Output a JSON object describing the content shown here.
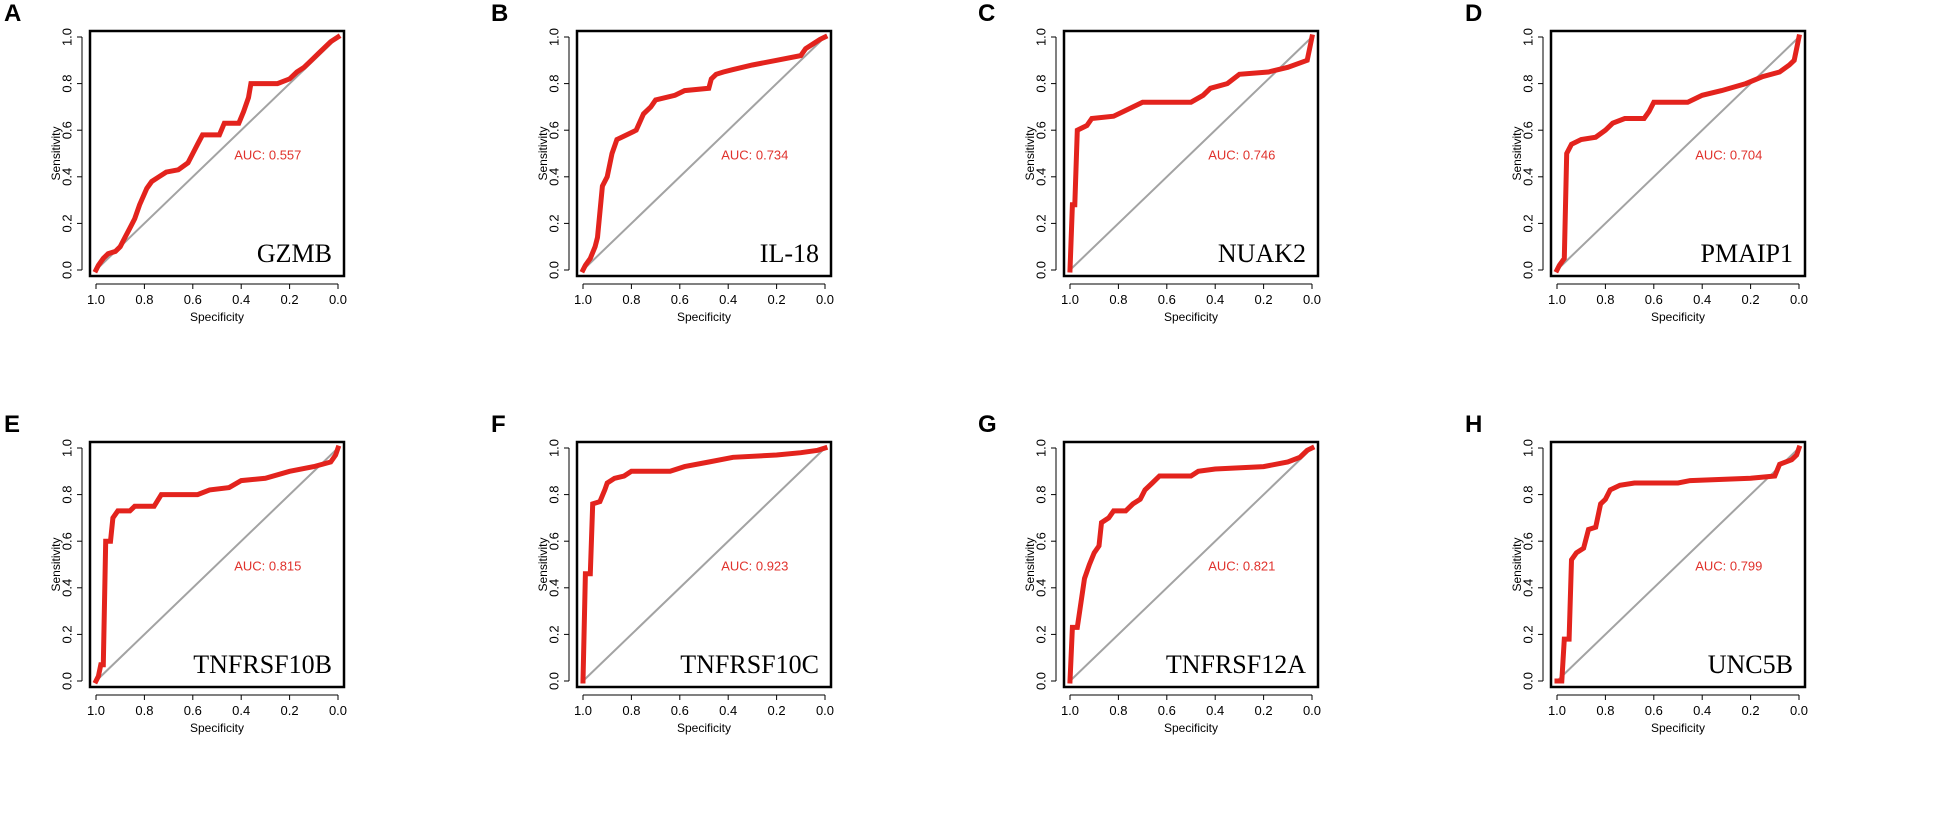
{
  "chart_data": [
    {
      "type": "line",
      "panel_letter": "A",
      "gene": "GZMB",
      "auc_label": "AUC: 0.557",
      "xlabel": "Specificity",
      "ylabel": "Sensitivity",
      "xlim": [
        1.0,
        0.0
      ],
      "ylim": [
        0.0,
        1.0
      ],
      "x_ticks": [
        "1.0",
        "0.8",
        "0.6",
        "0.4",
        "0.2",
        "0.0"
      ],
      "y_ticks": [
        "0.0",
        "0.2",
        "0.4",
        "0.6",
        "0.8",
        "1.0"
      ],
      "series": [
        {
          "name": "ROC",
          "points": [
            [
              1,
              0
            ],
            [
              0.99,
              0.02
            ],
            [
              0.97,
              0.05
            ],
            [
              0.95,
              0.07
            ],
            [
              0.92,
              0.08
            ],
            [
              0.9,
              0.1
            ],
            [
              0.88,
              0.14
            ],
            [
              0.86,
              0.18
            ],
            [
              0.84,
              0.22
            ],
            [
              0.82,
              0.28
            ],
            [
              0.79,
              0.35
            ],
            [
              0.77,
              0.38
            ],
            [
              0.74,
              0.4
            ],
            [
              0.71,
              0.42
            ],
            [
              0.66,
              0.43
            ],
            [
              0.62,
              0.46
            ],
            [
              0.6,
              0.5
            ],
            [
              0.58,
              0.54
            ],
            [
              0.56,
              0.58
            ],
            [
              0.49,
              0.58
            ],
            [
              0.47,
              0.63
            ],
            [
              0.41,
              0.63
            ],
            [
              0.39,
              0.68
            ],
            [
              0.37,
              0.74
            ],
            [
              0.36,
              0.8
            ],
            [
              0.25,
              0.8
            ],
            [
              0.2,
              0.82
            ],
            [
              0.17,
              0.85
            ],
            [
              0.14,
              0.87
            ],
            [
              0.11,
              0.9
            ],
            [
              0.08,
              0.93
            ],
            [
              0.05,
              0.96
            ],
            [
              0.03,
              0.98
            ],
            [
              0,
              1
            ]
          ]
        },
        {
          "name": "Reference",
          "points": [
            [
              1,
              0
            ],
            [
              0,
              1
            ]
          ]
        }
      ]
    },
    {
      "type": "line",
      "panel_letter": "B",
      "gene": "IL-18",
      "auc_label": "AUC: 0.734",
      "xlabel": "Specificity",
      "ylabel": "Sensitivity",
      "xlim": [
        1.0,
        0.0
      ],
      "ylim": [
        0.0,
        1.0
      ],
      "x_ticks": [
        "1.0",
        "0.8",
        "0.6",
        "0.4",
        "0.2",
        "0.0"
      ],
      "y_ticks": [
        "0.0",
        "0.2",
        "0.4",
        "0.6",
        "0.8",
        "1.0"
      ],
      "series": [
        {
          "name": "ROC",
          "points": [
            [
              1,
              0
            ],
            [
              0.99,
              0.02
            ],
            [
              0.97,
              0.05
            ],
            [
              0.95,
              0.1
            ],
            [
              0.94,
              0.14
            ],
            [
              0.92,
              0.36
            ],
            [
              0.9,
              0.4
            ],
            [
              0.88,
              0.5
            ],
            [
              0.86,
              0.56
            ],
            [
              0.84,
              0.57
            ],
            [
              0.78,
              0.6
            ],
            [
              0.75,
              0.67
            ],
            [
              0.72,
              0.7
            ],
            [
              0.7,
              0.73
            ],
            [
              0.62,
              0.75
            ],
            [
              0.58,
              0.77
            ],
            [
              0.48,
              0.78
            ],
            [
              0.47,
              0.82
            ],
            [
              0.45,
              0.84
            ],
            [
              0.42,
              0.85
            ],
            [
              0.38,
              0.86
            ],
            [
              0.3,
              0.88
            ],
            [
              0.2,
              0.9
            ],
            [
              0.1,
              0.92
            ],
            [
              0.08,
              0.95
            ],
            [
              0.05,
              0.97
            ],
            [
              0.02,
              0.99
            ],
            [
              0,
              1
            ]
          ]
        },
        {
          "name": "Reference",
          "points": [
            [
              1,
              0
            ],
            [
              0,
              1
            ]
          ]
        }
      ]
    },
    {
      "type": "line",
      "panel_letter": "C",
      "gene": "NUAK2",
      "auc_label": "AUC: 0.746",
      "xlabel": "Specificity",
      "ylabel": "Sensitivity",
      "xlim": [
        1.0,
        0.0
      ],
      "ylim": [
        0.0,
        1.0
      ],
      "x_ticks": [
        "1.0",
        "0.8",
        "0.6",
        "0.4",
        "0.2",
        "0.0"
      ],
      "y_ticks": [
        "0.0",
        "0.2",
        "0.4",
        "0.6",
        "0.8",
        "1.0"
      ],
      "series": [
        {
          "name": "ROC",
          "points": [
            [
              1,
              0
            ],
            [
              0.99,
              0.28
            ],
            [
              0.98,
              0.28
            ],
            [
              0.97,
              0.6
            ],
            [
              0.93,
              0.62
            ],
            [
              0.91,
              0.65
            ],
            [
              0.82,
              0.66
            ],
            [
              0.78,
              0.68
            ],
            [
              0.7,
              0.72
            ],
            [
              0.5,
              0.72
            ],
            [
              0.45,
              0.75
            ],
            [
              0.42,
              0.78
            ],
            [
              0.35,
              0.8
            ],
            [
              0.3,
              0.84
            ],
            [
              0.18,
              0.85
            ],
            [
              0.1,
              0.87
            ],
            [
              0.02,
              0.9
            ],
            [
              0.01,
              0.95
            ],
            [
              0,
              1
            ]
          ]
        },
        {
          "name": "Reference",
          "points": [
            [
              1,
              0
            ],
            [
              0,
              1
            ]
          ]
        }
      ]
    },
    {
      "type": "line",
      "panel_letter": "D",
      "gene": "PMAIP1",
      "auc_label": "AUC: 0.704",
      "xlabel": "Specificity",
      "ylabel": "Sensitivity",
      "xlim": [
        1.0,
        0.0
      ],
      "ylim": [
        0.0,
        1.0
      ],
      "x_ticks": [
        "1.0",
        "0.8",
        "0.6",
        "0.4",
        "0.2",
        "0.0"
      ],
      "y_ticks": [
        "0.0",
        "0.2",
        "0.4",
        "0.6",
        "0.8",
        "1.0"
      ],
      "series": [
        {
          "name": "ROC",
          "points": [
            [
              1,
              0
            ],
            [
              0.99,
              0.02
            ],
            [
              0.97,
              0.05
            ],
            [
              0.96,
              0.5
            ],
            [
              0.94,
              0.54
            ],
            [
              0.9,
              0.56
            ],
            [
              0.84,
              0.57
            ],
            [
              0.8,
              0.6
            ],
            [
              0.77,
              0.63
            ],
            [
              0.72,
              0.65
            ],
            [
              0.64,
              0.65
            ],
            [
              0.62,
              0.68
            ],
            [
              0.6,
              0.72
            ],
            [
              0.46,
              0.72
            ],
            [
              0.4,
              0.75
            ],
            [
              0.32,
              0.77
            ],
            [
              0.22,
              0.8
            ],
            [
              0.15,
              0.83
            ],
            [
              0.08,
              0.85
            ],
            [
              0.04,
              0.88
            ],
            [
              0.02,
              0.9
            ],
            [
              0.01,
              0.95
            ],
            [
              0,
              1
            ]
          ]
        },
        {
          "name": "Reference",
          "points": [
            [
              1,
              0
            ],
            [
              0,
              1
            ]
          ]
        }
      ]
    },
    {
      "type": "line",
      "panel_letter": "E",
      "gene": "TNFRSF10B",
      "auc_label": "AUC: 0.815",
      "xlabel": "Specificity",
      "ylabel": "Sensitivity",
      "xlim": [
        1.0,
        0.0
      ],
      "ylim": [
        0.0,
        1.0
      ],
      "x_ticks": [
        "1.0",
        "0.8",
        "0.6",
        "0.4",
        "0.2",
        "0.0"
      ],
      "y_ticks": [
        "0.0",
        "0.2",
        "0.4",
        "0.6",
        "0.8",
        "1.0"
      ],
      "series": [
        {
          "name": "ROC",
          "points": [
            [
              1,
              0
            ],
            [
              0.99,
              0.02
            ],
            [
              0.98,
              0.07
            ],
            [
              0.97,
              0.07
            ],
            [
              0.96,
              0.6
            ],
            [
              0.94,
              0.6
            ],
            [
              0.93,
              0.7
            ],
            [
              0.91,
              0.73
            ],
            [
              0.86,
              0.73
            ],
            [
              0.84,
              0.75
            ],
            [
              0.76,
              0.75
            ],
            [
              0.73,
              0.8
            ],
            [
              0.58,
              0.8
            ],
            [
              0.53,
              0.82
            ],
            [
              0.45,
              0.83
            ],
            [
              0.4,
              0.86
            ],
            [
              0.3,
              0.87
            ],
            [
              0.2,
              0.9
            ],
            [
              0.1,
              0.92
            ],
            [
              0.03,
              0.94
            ],
            [
              0.01,
              0.97
            ],
            [
              0,
              1
            ]
          ]
        },
        {
          "name": "Reference",
          "points": [
            [
              1,
              0
            ],
            [
              0,
              1
            ]
          ]
        }
      ]
    },
    {
      "type": "line",
      "panel_letter": "F",
      "gene": "TNFRSF10C",
      "auc_label": "AUC: 0.923",
      "xlabel": "Specificity",
      "ylabel": "Sensitivity",
      "xlim": [
        1.0,
        0.0
      ],
      "ylim": [
        0.0,
        1.0
      ],
      "x_ticks": [
        "1.0",
        "0.8",
        "0.6",
        "0.4",
        "0.2",
        "0.0"
      ],
      "y_ticks": [
        "0.0",
        "0.2",
        "0.4",
        "0.6",
        "0.8",
        "1.0"
      ],
      "series": [
        {
          "name": "ROC",
          "points": [
            [
              1,
              0
            ],
            [
              0.99,
              0.46
            ],
            [
              0.97,
              0.46
            ],
            [
              0.96,
              0.76
            ],
            [
              0.93,
              0.77
            ],
            [
              0.91,
              0.82
            ],
            [
              0.9,
              0.85
            ],
            [
              0.87,
              0.87
            ],
            [
              0.83,
              0.88
            ],
            [
              0.8,
              0.9
            ],
            [
              0.64,
              0.9
            ],
            [
              0.58,
              0.92
            ],
            [
              0.48,
              0.94
            ],
            [
              0.38,
              0.96
            ],
            [
              0.2,
              0.97
            ],
            [
              0.1,
              0.98
            ],
            [
              0.03,
              0.99
            ],
            [
              0,
              1
            ]
          ]
        },
        {
          "name": "Reference",
          "points": [
            [
              1,
              0
            ],
            [
              0,
              1
            ]
          ]
        }
      ]
    },
    {
      "type": "line",
      "panel_letter": "G",
      "gene": "TNFRSF12A",
      "auc_label": "AUC: 0.821",
      "xlabel": "Specificity",
      "ylabel": "Sensitivity",
      "xlim": [
        1.0,
        0.0
      ],
      "ylim": [
        0.0,
        1.0
      ],
      "x_ticks": [
        "1.0",
        "0.8",
        "0.6",
        "0.4",
        "0.2",
        "0.0"
      ],
      "y_ticks": [
        "0.0",
        "0.2",
        "0.4",
        "0.6",
        "0.8",
        "1.0"
      ],
      "series": [
        {
          "name": "ROC",
          "points": [
            [
              1,
              0
            ],
            [
              0.99,
              0.23
            ],
            [
              0.97,
              0.23
            ],
            [
              0.96,
              0.3
            ],
            [
              0.94,
              0.44
            ],
            [
              0.92,
              0.5
            ],
            [
              0.9,
              0.55
            ],
            [
              0.88,
              0.58
            ],
            [
              0.87,
              0.68
            ],
            [
              0.84,
              0.7
            ],
            [
              0.82,
              0.73
            ],
            [
              0.77,
              0.73
            ],
            [
              0.74,
              0.76
            ],
            [
              0.71,
              0.78
            ],
            [
              0.69,
              0.82
            ],
            [
              0.66,
              0.85
            ],
            [
              0.63,
              0.88
            ],
            [
              0.5,
              0.88
            ],
            [
              0.47,
              0.9
            ],
            [
              0.4,
              0.91
            ],
            [
              0.2,
              0.92
            ],
            [
              0.1,
              0.94
            ],
            [
              0.05,
              0.96
            ],
            [
              0.02,
              0.99
            ],
            [
              0,
              1
            ]
          ]
        },
        {
          "name": "Reference",
          "points": [
            [
              1,
              0
            ],
            [
              0,
              1
            ]
          ]
        }
      ]
    },
    {
      "type": "line",
      "panel_letter": "H",
      "gene": "UNC5B",
      "auc_label": "AUC: 0.799",
      "xlabel": "Specificity",
      "ylabel": "Sensitivity",
      "xlim": [
        1.0,
        0.0
      ],
      "ylim": [
        0.0,
        1.0
      ],
      "x_ticks": [
        "1.0",
        "0.8",
        "0.6",
        "0.4",
        "0.2",
        "0.0"
      ],
      "y_ticks": [
        "0.0",
        "0.2",
        "0.4",
        "0.6",
        "0.8",
        "1.0"
      ],
      "series": [
        {
          "name": "ROC",
          "points": [
            [
              1,
              0
            ],
            [
              0.98,
              0.0
            ],
            [
              0.97,
              0.18
            ],
            [
              0.95,
              0.18
            ],
            [
              0.94,
              0.52
            ],
            [
              0.92,
              0.55
            ],
            [
              0.89,
              0.57
            ],
            [
              0.87,
              0.65
            ],
            [
              0.84,
              0.66
            ],
            [
              0.82,
              0.76
            ],
            [
              0.8,
              0.78
            ],
            [
              0.78,
              0.82
            ],
            [
              0.74,
              0.84
            ],
            [
              0.68,
              0.85
            ],
            [
              0.5,
              0.85
            ],
            [
              0.45,
              0.86
            ],
            [
              0.2,
              0.87
            ],
            [
              0.1,
              0.88
            ],
            [
              0.08,
              0.93
            ],
            [
              0.03,
              0.95
            ],
            [
              0.01,
              0.97
            ],
            [
              0,
              1
            ]
          ]
        },
        {
          "name": "Reference",
          "points": [
            [
              1,
              0
            ],
            [
              0,
              1
            ]
          ]
        }
      ]
    }
  ]
}
